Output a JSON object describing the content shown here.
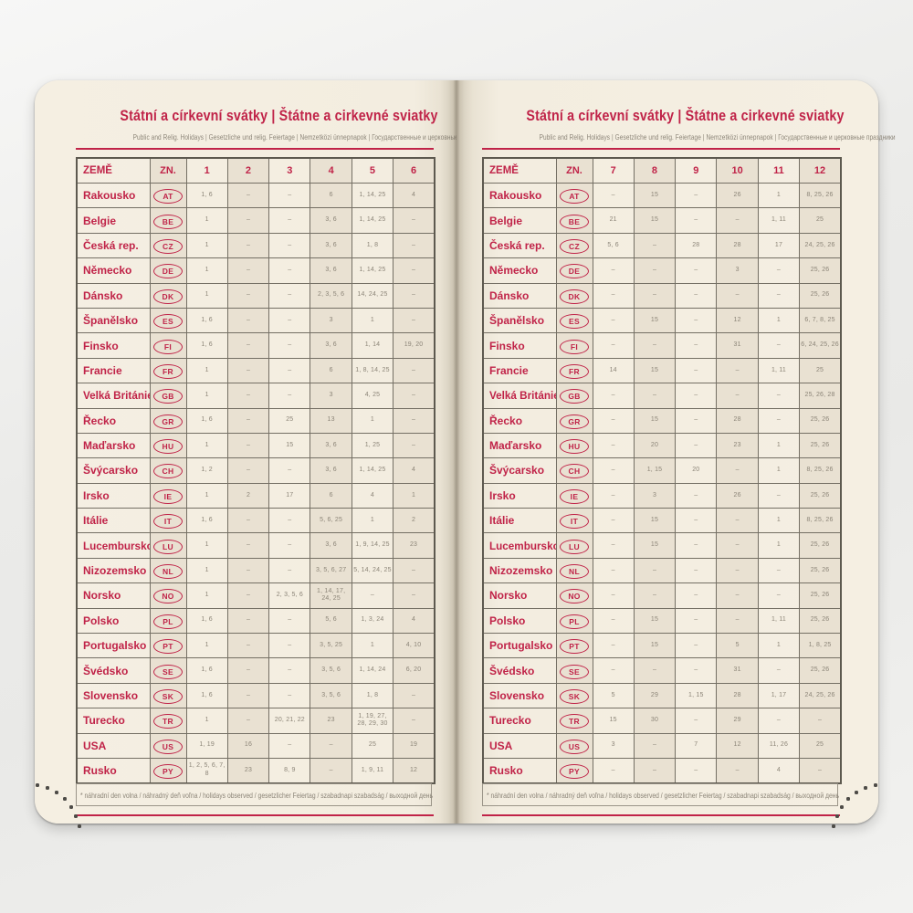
{
  "page": {
    "title": "Státní a církevní svátky | Štátne a cirkevné sviatky",
    "subtitle": "Public and Relig. Holidays | Gesetzliche und relig. Feiertage | Nemzetközi ünnepnapok | Государственные и церковные праздники",
    "footnote": "* náhradní den volna / náhradný deň voľna / holidays observed / gesetzlicher Feiertag / szabadnapi szabadság / выходной день",
    "colors": {
      "accent": "#c02348",
      "number_text": "#8c8578",
      "page_background": "#f3ede0",
      "column_shade": "#e9e1d2"
    }
  },
  "left_table": {
    "headers": [
      "ZEMĚ",
      "ZN.",
      "1",
      "2",
      "3",
      "4",
      "5",
      "6"
    ],
    "rows": [
      {
        "country": "Rakousko",
        "code": "AT",
        "months": [
          "1, 6",
          "–",
          "–",
          "6",
          "1, 14, 25",
          "4"
        ]
      },
      {
        "country": "Belgie",
        "code": "BE",
        "months": [
          "1",
          "–",
          "–",
          "3, 6",
          "1, 14, 25",
          "–"
        ]
      },
      {
        "country": "Česká rep.",
        "code": "CZ",
        "months": [
          "1",
          "–",
          "–",
          "3, 6",
          "1, 8",
          "–"
        ]
      },
      {
        "country": "Německo",
        "code": "DE",
        "months": [
          "1",
          "–",
          "–",
          "3, 6",
          "1, 14, 25",
          "–"
        ]
      },
      {
        "country": "Dánsko",
        "code": "DK",
        "months": [
          "1",
          "–",
          "–",
          "2, 3, 5, 6",
          "14, 24, 25",
          "–"
        ]
      },
      {
        "country": "Španělsko",
        "code": "ES",
        "months": [
          "1, 6",
          "–",
          "–",
          "3",
          "1",
          "–"
        ]
      },
      {
        "country": "Finsko",
        "code": "FI",
        "months": [
          "1, 6",
          "–",
          "–",
          "3, 6",
          "1, 14",
          "19, 20"
        ]
      },
      {
        "country": "Francie",
        "code": "FR",
        "months": [
          "1",
          "–",
          "–",
          "6",
          "1, 8, 14, 25",
          "–"
        ]
      },
      {
        "country": "Velká Británie",
        "code": "GB",
        "months": [
          "1",
          "–",
          "–",
          "3",
          "4, 25",
          "–"
        ]
      },
      {
        "country": "Řecko",
        "code": "GR",
        "months": [
          "1, 6",
          "–",
          "25",
          "13",
          "1",
          "–"
        ]
      },
      {
        "country": "Maďarsko",
        "code": "HU",
        "months": [
          "1",
          "–",
          "15",
          "3, 6",
          "1, 25",
          "–"
        ]
      },
      {
        "country": "Švýcarsko",
        "code": "CH",
        "months": [
          "1, 2",
          "–",
          "–",
          "3, 6",
          "1, 14, 25",
          "4"
        ]
      },
      {
        "country": "Irsko",
        "code": "IE",
        "months": [
          "1",
          "2",
          "17",
          "6",
          "4",
          "1"
        ]
      },
      {
        "country": "Itálie",
        "code": "IT",
        "months": [
          "1, 6",
          "–",
          "–",
          "5, 6, 25",
          "1",
          "2"
        ]
      },
      {
        "country": "Lucembursko",
        "code": "LU",
        "months": [
          "1",
          "–",
          "–",
          "3, 6",
          "1, 9, 14, 25",
          "23"
        ]
      },
      {
        "country": "Nizozemsko",
        "code": "NL",
        "months": [
          "1",
          "–",
          "–",
          "3, 5, 6, 27",
          "5, 14, 24, 25",
          "–"
        ]
      },
      {
        "country": "Norsko",
        "code": "NO",
        "months": [
          "1",
          "–",
          "2, 3, 5, 6",
          "1, 14, 17, 24, 25",
          "–",
          "–"
        ]
      },
      {
        "country": "Polsko",
        "code": "PL",
        "months": [
          "1, 6",
          "–",
          "–",
          "5, 6",
          "1, 3, 24",
          "4"
        ]
      },
      {
        "country": "Portugalsko",
        "code": "PT",
        "months": [
          "1",
          "–",
          "–",
          "3, 5, 25",
          "1",
          "4, 10"
        ]
      },
      {
        "country": "Švédsko",
        "code": "SE",
        "months": [
          "1, 6",
          "–",
          "–",
          "3, 5, 6",
          "1, 14, 24",
          "6, 20"
        ]
      },
      {
        "country": "Slovensko",
        "code": "SK",
        "months": [
          "1, 6",
          "–",
          "–",
          "3, 5, 6",
          "1, 8",
          "–"
        ]
      },
      {
        "country": "Turecko",
        "code": "TR",
        "months": [
          "1",
          "–",
          "20, 21, 22",
          "23",
          "1, 19, 27,\n28, 29, 30",
          "–"
        ]
      },
      {
        "country": "USA",
        "code": "US",
        "months": [
          "1, 19",
          "16",
          "–",
          "–",
          "25",
          "19"
        ]
      },
      {
        "country": "Rusko",
        "code": "PY",
        "months": [
          "1, 2, 5, 6, 7, 8",
          "23",
          "8, 9",
          "–",
          "1, 9, 11",
          "12"
        ]
      }
    ]
  },
  "right_table": {
    "headers": [
      "ZEMĚ",
      "ZN.",
      "7",
      "8",
      "9",
      "10",
      "11",
      "12"
    ],
    "rows": [
      {
        "country": "Rakousko",
        "code": "AT",
        "months": [
          "–",
          "15",
          "–",
          "26",
          "1",
          "8, 25, 26"
        ]
      },
      {
        "country": "Belgie",
        "code": "BE",
        "months": [
          "21",
          "15",
          "–",
          "–",
          "1, 11",
          "25"
        ]
      },
      {
        "country": "Česká rep.",
        "code": "CZ",
        "months": [
          "5, 6",
          "–",
          "28",
          "28",
          "17",
          "24, 25, 26"
        ]
      },
      {
        "country": "Německo",
        "code": "DE",
        "months": [
          "–",
          "–",
          "–",
          "3",
          "–",
          "25, 26"
        ]
      },
      {
        "country": "Dánsko",
        "code": "DK",
        "months": [
          "–",
          "–",
          "–",
          "–",
          "–",
          "25, 26"
        ]
      },
      {
        "country": "Španělsko",
        "code": "ES",
        "months": [
          "–",
          "15",
          "–",
          "12",
          "1",
          "6, 7, 8, 25"
        ]
      },
      {
        "country": "Finsko",
        "code": "FI",
        "months": [
          "–",
          "–",
          "–",
          "31",
          "–",
          "6, 24, 25, 26"
        ]
      },
      {
        "country": "Francie",
        "code": "FR",
        "months": [
          "14",
          "15",
          "–",
          "–",
          "1, 11",
          "25"
        ]
      },
      {
        "country": "Velká Británie",
        "code": "GB",
        "months": [
          "–",
          "–",
          "–",
          "–",
          "–",
          "25, 26, 28"
        ]
      },
      {
        "country": "Řecko",
        "code": "GR",
        "months": [
          "–",
          "15",
          "–",
          "28",
          "–",
          "25, 26"
        ]
      },
      {
        "country": "Maďarsko",
        "code": "HU",
        "months": [
          "–",
          "20",
          "–",
          "23",
          "1",
          "25, 26"
        ]
      },
      {
        "country": "Švýcarsko",
        "code": "CH",
        "months": [
          "–",
          "1, 15",
          "20",
          "–",
          "1",
          "8, 25, 26"
        ]
      },
      {
        "country": "Irsko",
        "code": "IE",
        "months": [
          "–",
          "3",
          "–",
          "26",
          "–",
          "25, 26"
        ]
      },
      {
        "country": "Itálie",
        "code": "IT",
        "months": [
          "–",
          "15",
          "–",
          "–",
          "1",
          "8, 25, 26"
        ]
      },
      {
        "country": "Lucembursko",
        "code": "LU",
        "months": [
          "–",
          "15",
          "–",
          "–",
          "1",
          "25, 26"
        ]
      },
      {
        "country": "Nizozemsko",
        "code": "NL",
        "months": [
          "–",
          "–",
          "–",
          "–",
          "–",
          "25, 26"
        ]
      },
      {
        "country": "Norsko",
        "code": "NO",
        "months": [
          "–",
          "–",
          "–",
          "–",
          "–",
          "25, 26"
        ]
      },
      {
        "country": "Polsko",
        "code": "PL",
        "months": [
          "–",
          "15",
          "–",
          "–",
          "1, 11",
          "25, 26"
        ]
      },
      {
        "country": "Portugalsko",
        "code": "PT",
        "months": [
          "–",
          "15",
          "–",
          "5",
          "1",
          "1, 8, 25"
        ]
      },
      {
        "country": "Švédsko",
        "code": "SE",
        "months": [
          "–",
          "–",
          "–",
          "31",
          "–",
          "25, 26"
        ]
      },
      {
        "country": "Slovensko",
        "code": "SK",
        "months": [
          "5",
          "29",
          "1, 15",
          "28",
          "1, 17",
          "24, 25, 26"
        ]
      },
      {
        "country": "Turecko",
        "code": "TR",
        "months": [
          "15",
          "30",
          "–",
          "29",
          "–",
          "–"
        ]
      },
      {
        "country": "USA",
        "code": "US",
        "months": [
          "3",
          "–",
          "7",
          "12",
          "11, 26",
          "25"
        ]
      },
      {
        "country": "Rusko",
        "code": "PY",
        "months": [
          "–",
          "–",
          "–",
          "–",
          "4",
          "–"
        ]
      }
    ]
  }
}
